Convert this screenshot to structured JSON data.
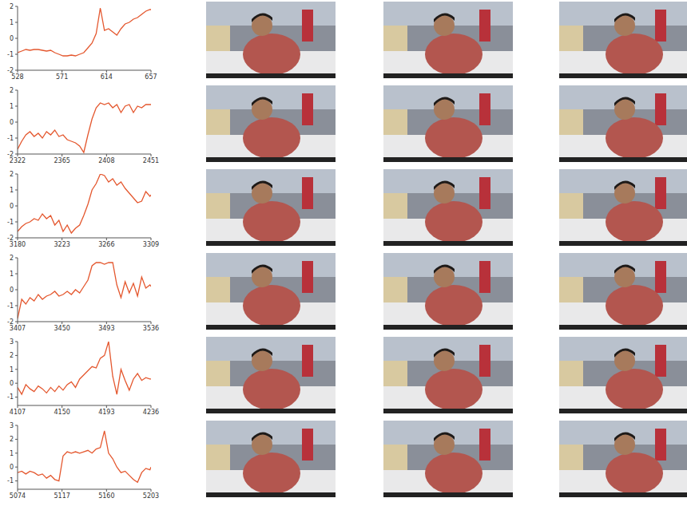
{
  "chart_data": [
    {
      "type": "line",
      "color": "#e4572e",
      "grid": false,
      "x": [
        528,
        532,
        536,
        540,
        544,
        548,
        552,
        556,
        560,
        564,
        568,
        572,
        576,
        580,
        584,
        588,
        592,
        596,
        600,
        604,
        608,
        612,
        616,
        620,
        624,
        628,
        632,
        636,
        640,
        644,
        648,
        652,
        656,
        657
      ],
      "values": [
        -0.9,
        -0.8,
        -0.7,
        -0.75,
        -0.7,
        -0.7,
        -0.75,
        -0.8,
        -0.75,
        -0.9,
        -1.0,
        -1.1,
        -1.1,
        -1.05,
        -1.1,
        -1.0,
        -0.9,
        -0.6,
        -0.3,
        0.3,
        1.9,
        0.5,
        0.6,
        0.4,
        0.2,
        0.6,
        0.9,
        1.0,
        1.2,
        1.3,
        1.5,
        1.7,
        1.8,
        1.8
      ],
      "xlim": [
        528,
        657
      ],
      "xticks": [
        528,
        571,
        614,
        657
      ],
      "ylim": [
        -2,
        2
      ],
      "yticks": [
        -2,
        -1,
        0,
        1,
        2
      ]
    },
    {
      "type": "line",
      "color": "#e4572e",
      "grid": false,
      "x": [
        2322,
        2326,
        2330,
        2334,
        2338,
        2342,
        2346,
        2350,
        2354,
        2358,
        2362,
        2366,
        2370,
        2374,
        2378,
        2382,
        2386,
        2390,
        2394,
        2398,
        2402,
        2406,
        2410,
        2414,
        2418,
        2422,
        2426,
        2430,
        2434,
        2438,
        2442,
        2446,
        2450,
        2451
      ],
      "values": [
        -1.7,
        -1.2,
        -0.8,
        -0.6,
        -0.9,
        -0.7,
        -1.0,
        -0.6,
        -0.8,
        -0.5,
        -0.9,
        -0.8,
        -1.1,
        -1.2,
        -1.3,
        -1.5,
        -1.9,
        -0.8,
        0.2,
        0.9,
        1.2,
        1.1,
        1.2,
        0.9,
        1.1,
        0.6,
        1.0,
        1.1,
        0.6,
        1.0,
        0.9,
        1.1,
        1.1,
        1.1
      ],
      "xlim": [
        2322,
        2451
      ],
      "xticks": [
        2322,
        2365,
        2408,
        2451
      ],
      "ylim": [
        -2,
        2
      ],
      "yticks": [
        -2,
        -1,
        0,
        1,
        2
      ]
    },
    {
      "type": "line",
      "color": "#e4572e",
      "grid": false,
      "x": [
        3180,
        3184,
        3188,
        3192,
        3196,
        3200,
        3204,
        3208,
        3212,
        3216,
        3220,
        3224,
        3228,
        3232,
        3236,
        3240,
        3244,
        3248,
        3252,
        3256,
        3260,
        3264,
        3268,
        3272,
        3276,
        3280,
        3284,
        3288,
        3292,
        3296,
        3300,
        3304,
        3308,
        3309
      ],
      "values": [
        -1.6,
        -1.3,
        -1.1,
        -1.0,
        -0.8,
        -0.9,
        -0.5,
        -0.8,
        -0.6,
        -1.2,
        -0.9,
        -1.6,
        -1.2,
        -1.7,
        -1.4,
        -1.2,
        -0.6,
        0.1,
        1.0,
        1.4,
        2.0,
        1.9,
        1.5,
        1.7,
        1.3,
        1.5,
        1.1,
        0.8,
        0.5,
        0.2,
        0.3,
        0.9,
        0.6,
        0.7
      ],
      "xlim": [
        3180,
        3309
      ],
      "xticks": [
        3180,
        3223,
        3266,
        3309
      ],
      "ylim": [
        -2,
        2
      ],
      "yticks": [
        -2,
        -1,
        0,
        1,
        2
      ]
    },
    {
      "type": "line",
      "color": "#e4572e",
      "grid": false,
      "x": [
        3407,
        3411,
        3415,
        3419,
        3423,
        3427,
        3431,
        3435,
        3439,
        3443,
        3447,
        3451,
        3455,
        3459,
        3463,
        3467,
        3471,
        3475,
        3479,
        3483,
        3487,
        3491,
        3495,
        3499,
        3503,
        3507,
        3511,
        3515,
        3519,
        3523,
        3527,
        3531,
        3535,
        3536
      ],
      "values": [
        -1.8,
        -0.6,
        -0.9,
        -0.5,
        -0.7,
        -0.3,
        -0.6,
        -0.4,
        -0.3,
        -0.1,
        -0.4,
        -0.3,
        -0.1,
        -0.3,
        0.0,
        -0.2,
        0.2,
        0.6,
        1.5,
        1.7,
        1.7,
        1.6,
        1.7,
        1.7,
        0.3,
        -0.5,
        0.5,
        -0.2,
        0.4,
        -0.4,
        0.8,
        0.1,
        0.3,
        0.2
      ],
      "xlim": [
        3407,
        3536
      ],
      "xticks": [
        3407,
        3450,
        3493,
        3536
      ],
      "ylim": [
        -2,
        2
      ],
      "yticks": [
        -2,
        -1,
        0,
        1,
        2
      ]
    },
    {
      "type": "line",
      "color": "#e4572e",
      "grid": false,
      "x": [
        4107,
        4111,
        4115,
        4119,
        4123,
        4127,
        4131,
        4135,
        4139,
        4143,
        4147,
        4151,
        4155,
        4159,
        4163,
        4167,
        4171,
        4175,
        4179,
        4183,
        4187,
        4191,
        4195,
        4199,
        4203,
        4207,
        4211,
        4215,
        4219,
        4223,
        4227,
        4231,
        4235,
        4236
      ],
      "values": [
        -0.3,
        -0.8,
        -0.1,
        -0.4,
        -0.6,
        -0.2,
        -0.4,
        -0.7,
        -0.3,
        -0.6,
        -0.2,
        -0.5,
        -0.1,
        0.1,
        -0.3,
        0.3,
        0.6,
        0.9,
        1.2,
        1.1,
        1.8,
        2.0,
        3.0,
        0.5,
        -0.8,
        1.0,
        0.2,
        -0.5,
        0.3,
        0.7,
        0.2,
        0.4,
        0.3,
        0.3
      ],
      "xlim": [
        4107,
        4236
      ],
      "xticks": [
        4107,
        4150,
        4193,
        4236
      ],
      "ylim": [
        -1.6,
        3
      ],
      "yticks": [
        -1,
        0,
        1,
        2,
        3
      ]
    },
    {
      "type": "line",
      "color": "#e4572e",
      "grid": false,
      "x": [
        5074,
        5078,
        5082,
        5086,
        5090,
        5094,
        5098,
        5102,
        5106,
        5110,
        5114,
        5118,
        5122,
        5126,
        5130,
        5134,
        5138,
        5142,
        5146,
        5150,
        5154,
        5158,
        5162,
        5166,
        5170,
        5174,
        5178,
        5182,
        5186,
        5190,
        5194,
        5198,
        5202,
        5203
      ],
      "values": [
        -0.4,
        -0.3,
        -0.5,
        -0.3,
        -0.4,
        -0.6,
        -0.5,
        -0.8,
        -0.6,
        -0.9,
        -1.0,
        0.8,
        1.1,
        1.0,
        1.1,
        1.0,
        1.1,
        1.2,
        1.0,
        1.3,
        1.4,
        2.6,
        1.0,
        0.6,
        0.0,
        -0.4,
        -0.3,
        -0.6,
        -0.9,
        -1.1,
        -0.4,
        -0.1,
        -0.2,
        0.0
      ],
      "xlim": [
        5074,
        5203
      ],
      "xticks": [
        5074,
        5117,
        5160,
        5203
      ],
      "ylim": [
        -1.6,
        3
      ],
      "yticks": [
        -1,
        0,
        1,
        2,
        3
      ]
    }
  ]
}
